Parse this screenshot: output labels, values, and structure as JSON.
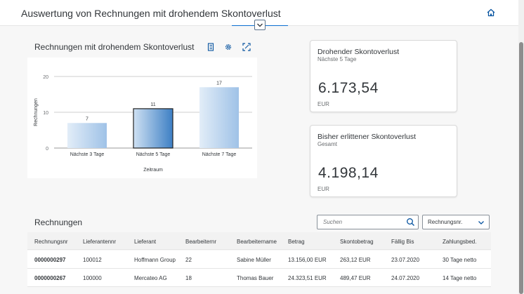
{
  "header": {
    "title": "Auswertung von Rechnungen mit drohendem Skontoverlust",
    "home_icon": "home-icon",
    "collapse_icon": "chevron-down-icon"
  },
  "chart_card": {
    "title": "Rechnungen mit drohendem Skontoverlust",
    "tools": [
      "table-view-icon",
      "gear-icon",
      "fullscreen-icon"
    ]
  },
  "chart_data": {
    "type": "bar",
    "categories": [
      "Nächste 3 Tage",
      "Nächste 5 Tage",
      "Nächste 7 Tage"
    ],
    "values": [
      7,
      11,
      17
    ],
    "data_labels": [
      "7",
      "11",
      "17"
    ],
    "xlabel": "Zeitraum",
    "ylabel": "Rechnungen",
    "ylim": [
      0,
      20
    ],
    "yticks": [
      "0",
      "10",
      "20"
    ],
    "selected_index": 1,
    "grid": true,
    "colors": {
      "bar_light": "#dbe8f6",
      "bar_dark": "#a9c9ea",
      "selected": "#4a89c9",
      "selected_border": "#222222"
    }
  },
  "kpis": [
    {
      "title": "Drohender Skontoverlust",
      "subtitle": "Nächste 5 Tage",
      "value": "6.173,54",
      "unit": "EUR"
    },
    {
      "title": "Bisher erlittener Skontoverlust",
      "subtitle": "Gesamt",
      "value": "4.198,14",
      "unit": "EUR"
    }
  ],
  "table": {
    "title": "Rechnungen",
    "search_placeholder": "Suchen",
    "sort_select": "Rechnungsnr.",
    "columns": [
      "Rechnungsnr",
      "Lieferantennr",
      "Lieferant",
      "Bearbeiternr",
      "Bearbeitername",
      "Betrag",
      "Skontobetrag",
      "Fällig Bis",
      "Zahlungsbed."
    ],
    "rows": [
      [
        "0000000297",
        "100012",
        "Hoffmann Group",
        "22",
        "Sabine Müller",
        "13.156,00 EUR",
        "263,12 EUR",
        "23.07.2020",
        "30 Tage netto"
      ],
      [
        "0000000267",
        "100000",
        "Mercateo AG",
        "18",
        "Thomas Bauer",
        "24.323,51 EUR",
        "489,47 EUR",
        "24.07.2020",
        "14 Tage netto"
      ]
    ]
  },
  "colors": {
    "accent": "#0a6ed1",
    "icon": "#0854a0"
  }
}
